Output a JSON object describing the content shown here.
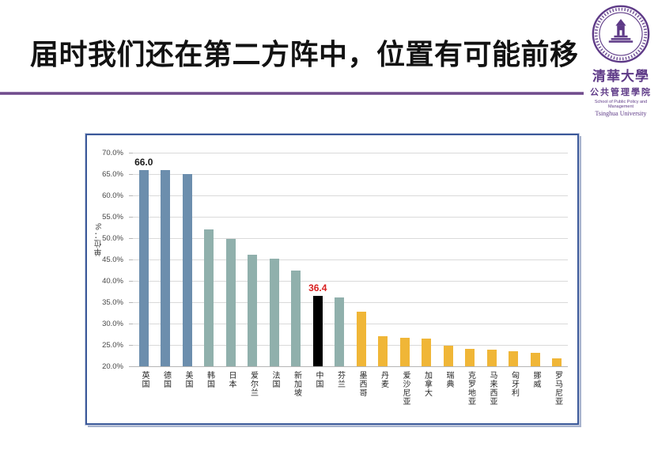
{
  "slide": {
    "title": "届时我们还在第二方阵中，位置有可能前移"
  },
  "logo": {
    "name_zh": "清華大學",
    "dept_zh": "公共管理學院",
    "school_en": "School of Public Policy and Management",
    "univ_en": "Tsinghua University",
    "color": "#5E3A87"
  },
  "chart_data": {
    "type": "bar",
    "title": "",
    "xlabel": "",
    "ylabel": "单位：%",
    "ylim": [
      20,
      70
    ],
    "ytick_labels": [
      "70.0%",
      "65.0%",
      "60.0%",
      "55.0%",
      "50.0%",
      "45.0%",
      "40.0%",
      "35.0%",
      "30.0%",
      "25.0%",
      "20.0%"
    ],
    "grid": true,
    "legend": "none",
    "categories": [
      "英国",
      "德国",
      "美国",
      "韩国",
      "日本",
      "爱尔兰",
      "法国",
      "新加坡",
      "中国",
      "芬兰",
      "墨西哥",
      "丹麦",
      "爱沙尼亚",
      "加拿大",
      "瑞典",
      "克罗地亚",
      "马来西亚",
      "匈牙利",
      "挪威",
      "罗马尼亚"
    ],
    "values": [
      66.0,
      66.0,
      65.0,
      52.0,
      49.8,
      46.1,
      45.1,
      42.4,
      36.4,
      36.1,
      32.8,
      27.1,
      26.7,
      26.4,
      24.8,
      24.0,
      23.8,
      23.6,
      23.1,
      21.9
    ],
    "bar_colors": [
      "#6C8EAD",
      "#6C8EAD",
      "#6C8EAD",
      "#90B0AC",
      "#90B0AC",
      "#90B0AC",
      "#90B0AC",
      "#90B0AC",
      "#000000",
      "#90B0AC",
      "#F0B637",
      "#F0B637",
      "#F0B637",
      "#F0B637",
      "#F0B637",
      "#F0B637",
      "#F0B637",
      "#F0B637",
      "#F0B637",
      "#F0B637"
    ],
    "annotations": [
      {
        "index": 0,
        "text": "66.0",
        "color": "#1a1a1a"
      },
      {
        "index": 8,
        "text": "36.4",
        "color": "#D92020"
      }
    ],
    "colors": {
      "bar_blue": "#6C8EAD",
      "bar_teal": "#90B0AC",
      "bar_black": "#000000",
      "bar_gold": "#F0B637",
      "gridline": "#dadada",
      "axis": "#b6b6b6",
      "annotation_red": "#D92020",
      "accent_purple": "#5E3A87"
    }
  }
}
